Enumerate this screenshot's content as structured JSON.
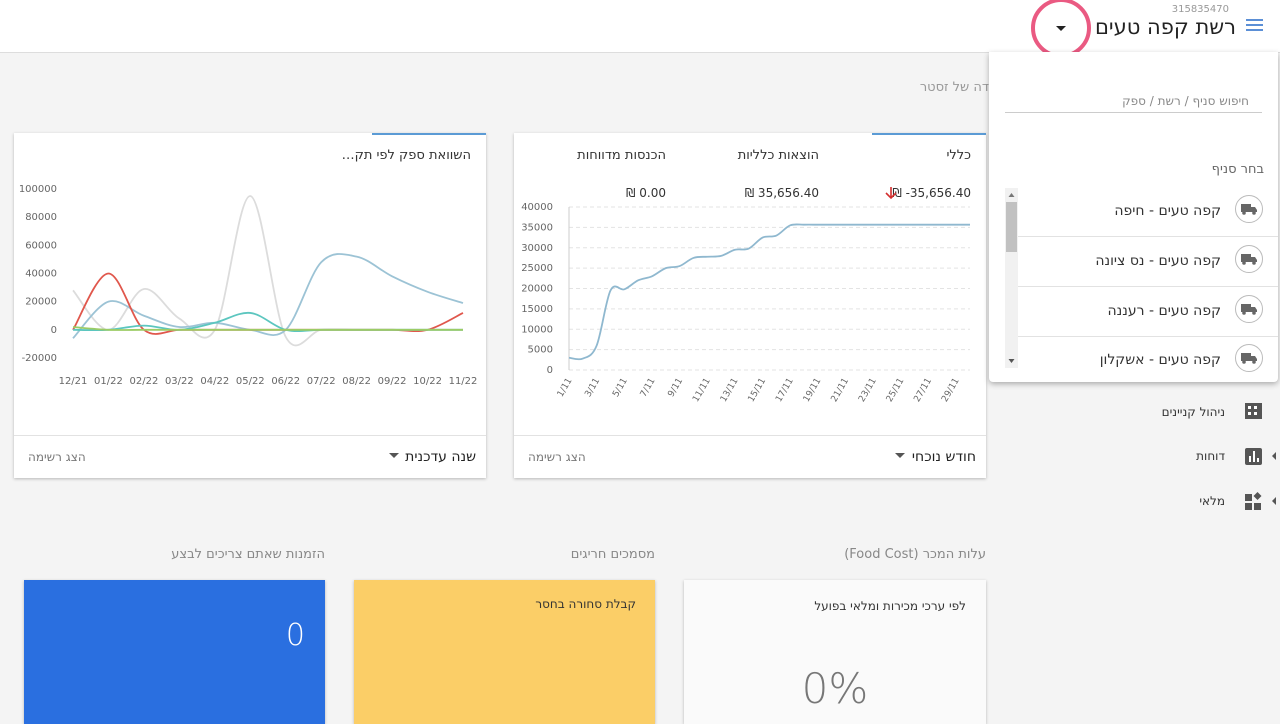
{
  "header": {
    "account_id": "315835470",
    "title": "רשת קפה טעים"
  },
  "greeting": "דה של זסטר",
  "branch_menu": {
    "search_placeholder": "חיפוש סניף / רשת / ספק",
    "label": "בחר סניף",
    "branches": [
      "קפה טעים - חיפה",
      "קפה טעים - נס ציונה",
      "קפה טעים - רעננה",
      "קפה טעים - אשקלון"
    ]
  },
  "sidebar": {
    "items": [
      "ניהול קניינים",
      "דוחות",
      "מלאי"
    ]
  },
  "summary_card": {
    "tabs": [
      "כללי",
      "הוצאות כלליות",
      "הכנסות מדווחות"
    ],
    "totals": [
      "₪ -35,656.40",
      "₪ 35,656.40",
      "₪ 0.00"
    ],
    "period": "חודש נוכחי",
    "show_list": "הצג רשימה",
    "chart": {
      "type": "line",
      "categories": [
        "1/11",
        null,
        "3/11",
        null,
        "5/11",
        null,
        "7/11",
        null,
        "9/11",
        null,
        "11/11",
        null,
        "13/11",
        null,
        "15/11",
        null,
        "17/11",
        null,
        "19/11",
        null,
        "21/11",
        null,
        "23/11",
        null,
        "25/11",
        null,
        "27/11",
        null,
        "29/11",
        null
      ],
      "series": [
        {
          "color": "#8fb8cf",
          "values": [
            3000,
            2800,
            6000,
            19500,
            19800,
            22000,
            23000,
            25000,
            25500,
            27500,
            27800,
            28000,
            29500,
            29800,
            32500,
            33000,
            35500,
            35656.4,
            35656.4,
            35656.4,
            35656.4,
            35656.4,
            35656.4,
            35656.4,
            35656.4,
            35656.4,
            35656.4,
            35656.4,
            35656.4,
            35656.4
          ]
        }
      ],
      "ylim": [
        0,
        40000
      ],
      "yticks": [
        0,
        5000,
        10000,
        15000,
        20000,
        25000,
        30000,
        35000,
        40000
      ],
      "grid": true
    }
  },
  "supplier_card": {
    "title": "השוואת ספק לפי תק…",
    "period": "שנה עדכנית",
    "show_list": "הצג רשימה",
    "chart": {
      "type": "line",
      "categories": [
        "12/21",
        "01/22",
        "02/22",
        "03/22",
        "04/22",
        "05/22",
        "06/22",
        "07/22",
        "08/22",
        "09/22",
        "10/22",
        "11/22"
      ],
      "series": [
        {
          "color": "#dcdcdc",
          "values": [
            28000,
            0,
            29000,
            8000,
            0,
            95000,
            -5000,
            0,
            0,
            0,
            0,
            0
          ]
        },
        {
          "color": "#9cc3d5",
          "values": [
            -6000,
            20000,
            10000,
            2000,
            5000,
            0,
            0,
            48000,
            52000,
            38000,
            27000,
            19000
          ]
        },
        {
          "color": "#e0574c",
          "values": [
            0,
            40000,
            0,
            0,
            0,
            0,
            0,
            0,
            0,
            0,
            0,
            12000
          ]
        },
        {
          "color": "#5cc6bf",
          "values": [
            0,
            0,
            3000,
            0,
            5000,
            12000,
            0,
            0,
            0,
            0,
            0,
            0
          ]
        },
        {
          "color": "#9ccc65",
          "values": [
            2000,
            0,
            0,
            0,
            0,
            0,
            0,
            0,
            0,
            0,
            0,
            0
          ]
        }
      ],
      "ylim": [
        -20000,
        100000
      ],
      "yticks": [
        -20000,
        0,
        20000,
        40000,
        60000,
        80000,
        100000
      ],
      "grid": false
    }
  },
  "widgets": [
    {
      "title": "עלות המכר (Food Cost)",
      "text": "לפי ערכי מכירות ומלאי בפועל",
      "value": "0%"
    },
    {
      "title": "מסמכים חריגים",
      "text": "קבלת סחורה בחסר"
    },
    {
      "title": "הזמנות שאתם צריכים לבצע",
      "value": "0"
    }
  ]
}
